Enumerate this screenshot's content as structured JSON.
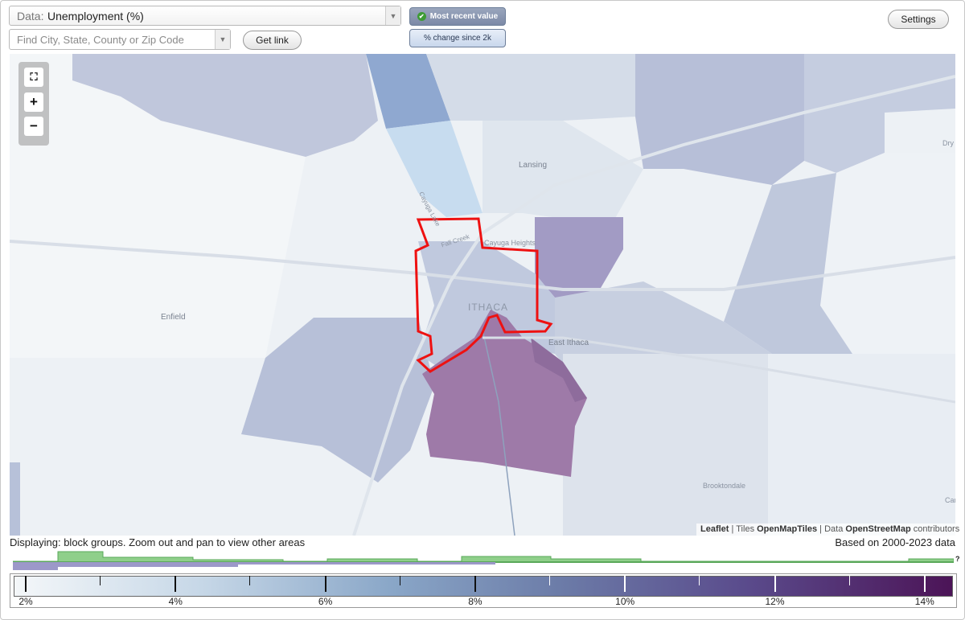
{
  "header": {
    "data_prefix": "Data:",
    "data_value": "Unemployment (%)",
    "search_placeholder": "Find City, State, County or Zip Code",
    "get_link_label": "Get link",
    "toggle_recent_label": "Most recent value",
    "toggle_change_label": "% change since 2k",
    "settings_label": "Settings"
  },
  "map": {
    "place_labels": [
      "Lansing",
      "Cayuga Heights",
      "ITHACA",
      "Enfield",
      "East Ithaca",
      "Brooktondale",
      "Dry",
      "Car",
      "Cayuga Lake",
      "Fall Creek"
    ],
    "attribution": {
      "leaflet": "Leaflet",
      "tiles_prefix": "| Tiles",
      "tiles": "OpenMapTiles",
      "data_prefix": "| Data",
      "data": "OpenStreetMap",
      "suffix": "contributors"
    },
    "highlight_color": "#ee1111"
  },
  "status": {
    "displaying": "Displaying: block groups. Zoom out and pan to view other areas",
    "based_on": "Based on 2000-2023 data"
  },
  "legend": {
    "tick_labels": [
      "2%",
      "4%",
      "6%",
      "8%",
      "10%",
      "12%",
      "14%"
    ],
    "question": "?",
    "colors": {
      "low": "#f4f7f9",
      "mid": "#8aa7c8",
      "high": "#4c1457",
      "histogram_green": "#8fcf8a",
      "histogram_purple": "#9c98c9"
    }
  }
}
